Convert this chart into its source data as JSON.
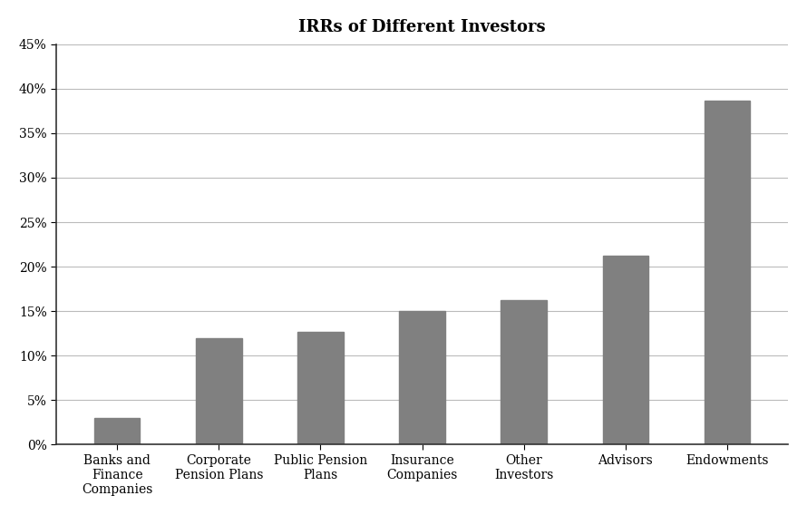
{
  "title": "IRRs of Different Investors",
  "categories": [
    "Banks and\nFinance\nCompanies",
    "Corporate\nPension Plans",
    "Public Pension\nPlans",
    "Insurance\nCompanies",
    "Other\nInvestors",
    "Advisors",
    "Endowments"
  ],
  "values": [
    3.0,
    12.0,
    12.7,
    15.0,
    16.2,
    21.2,
    38.7
  ],
  "bar_color": "#808080",
  "background_color": "#ffffff",
  "ylim": [
    0,
    45
  ],
  "yticks": [
    0,
    5,
    10,
    15,
    20,
    25,
    30,
    35,
    40,
    45
  ],
  "title_fontsize": 13,
  "tick_fontsize": 10,
  "bar_width": 0.45,
  "grid_color": "#bbbbbb",
  "spine_color": "#333333"
}
